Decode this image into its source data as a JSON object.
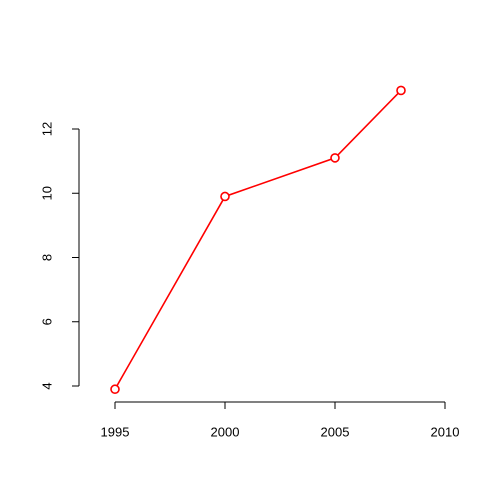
{
  "chart_data": {
    "type": "line",
    "x": [
      1995,
      2000,
      2005,
      2008
    ],
    "series": [
      {
        "color": "#ff0000",
        "values": [
          3.9,
          9.9,
          11.1,
          13.2
        ]
      }
    ],
    "xlim": [
      1995,
      2010
    ],
    "xticks": [
      1995,
      2000,
      2005,
      2010
    ],
    "ylim": [
      4,
      12
    ],
    "yticks": [
      4,
      6,
      8,
      10,
      12
    ]
  }
}
